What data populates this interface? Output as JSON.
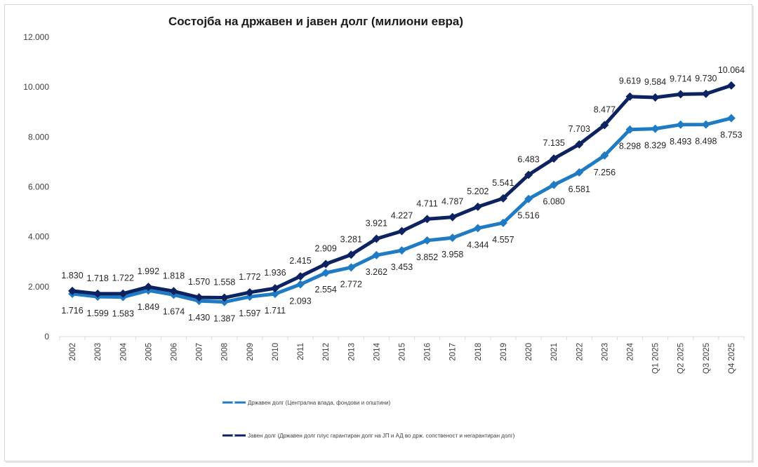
{
  "chart_data": {
    "type": "line",
    "title": "Состојба на државен и јавен долг (милиони евра)",
    "xlabel": "",
    "ylabel": "",
    "ylim": [
      0,
      12000
    ],
    "yticks": [
      "0",
      "2.000",
      "4.000",
      "6.000",
      "8.000",
      "10.000",
      "12.000"
    ],
    "ytick_values": [
      0,
      2000,
      4000,
      6000,
      8000,
      10000,
      12000
    ],
    "grid": false,
    "legend_position": "bottom",
    "categories": [
      "2002",
      "2003",
      "2004",
      "2005",
      "2006",
      "2007",
      "2008",
      "2009",
      "2010",
      "2011",
      "2012",
      "2013",
      "2014",
      "2015",
      "2016",
      "2017",
      "2018",
      "2019",
      "2020",
      "2021",
      "2022",
      "2023",
      "2024",
      "Q1 2025",
      "Q2 2025",
      "Q3 2025",
      "Q4 2025"
    ],
    "series": [
      {
        "name": "Државен долг (Централна влада, фондови и општини)",
        "color": "#1f7bc4",
        "values": [
          1716,
          1599,
          1583,
          1849,
          1674,
          1430,
          1387,
          1597,
          1711,
          2093,
          2554,
          2772,
          3262,
          3453,
          3852,
          3958,
          4344,
          4557,
          5516,
          6080,
          6581,
          7256,
          8298,
          8329,
          8493,
          8498,
          8753
        ],
        "labels": [
          "1.716",
          "1.599",
          "1.583",
          "1.849",
          "1.674",
          "1.430",
          "1.387",
          "1.597",
          "1.711",
          "2.093",
          "2.554",
          "2.772",
          "3.262",
          "3.453",
          "3.852",
          "3.958",
          "4.344",
          "4.557",
          "5.516",
          "6.080",
          "6.581",
          "7.256",
          "8.298",
          "8.329",
          "8.493",
          "8.498",
          "8.753"
        ]
      },
      {
        "name": "Јавен долг (Државен долг плус гарантиран долг на ЈП и АД во држ. сопственост и негарантиран долг)",
        "color": "#0d2260",
        "values": [
          1830,
          1718,
          1722,
          1992,
          1818,
          1570,
          1558,
          1772,
          1936,
          2415,
          2909,
          3281,
          3921,
          4227,
          4711,
          4787,
          5202,
          5541,
          6483,
          7135,
          7703,
          8477,
          9619,
          9584,
          9714,
          9730,
          10064
        ],
        "labels": [
          "1.830",
          "1.718",
          "1.722",
          "1.992",
          "1.818",
          "1.570",
          "1.558",
          "1.772",
          "1.936",
          "2.415",
          "2.909",
          "3.281",
          "3.921",
          "4.227",
          "4.711",
          "4.787",
          "5.202",
          "5.541",
          "6.483",
          "7.135",
          "7.703",
          "8.477",
          "9.619",
          "9.584",
          "9.714",
          "9.730",
          "10.064"
        ]
      }
    ]
  }
}
